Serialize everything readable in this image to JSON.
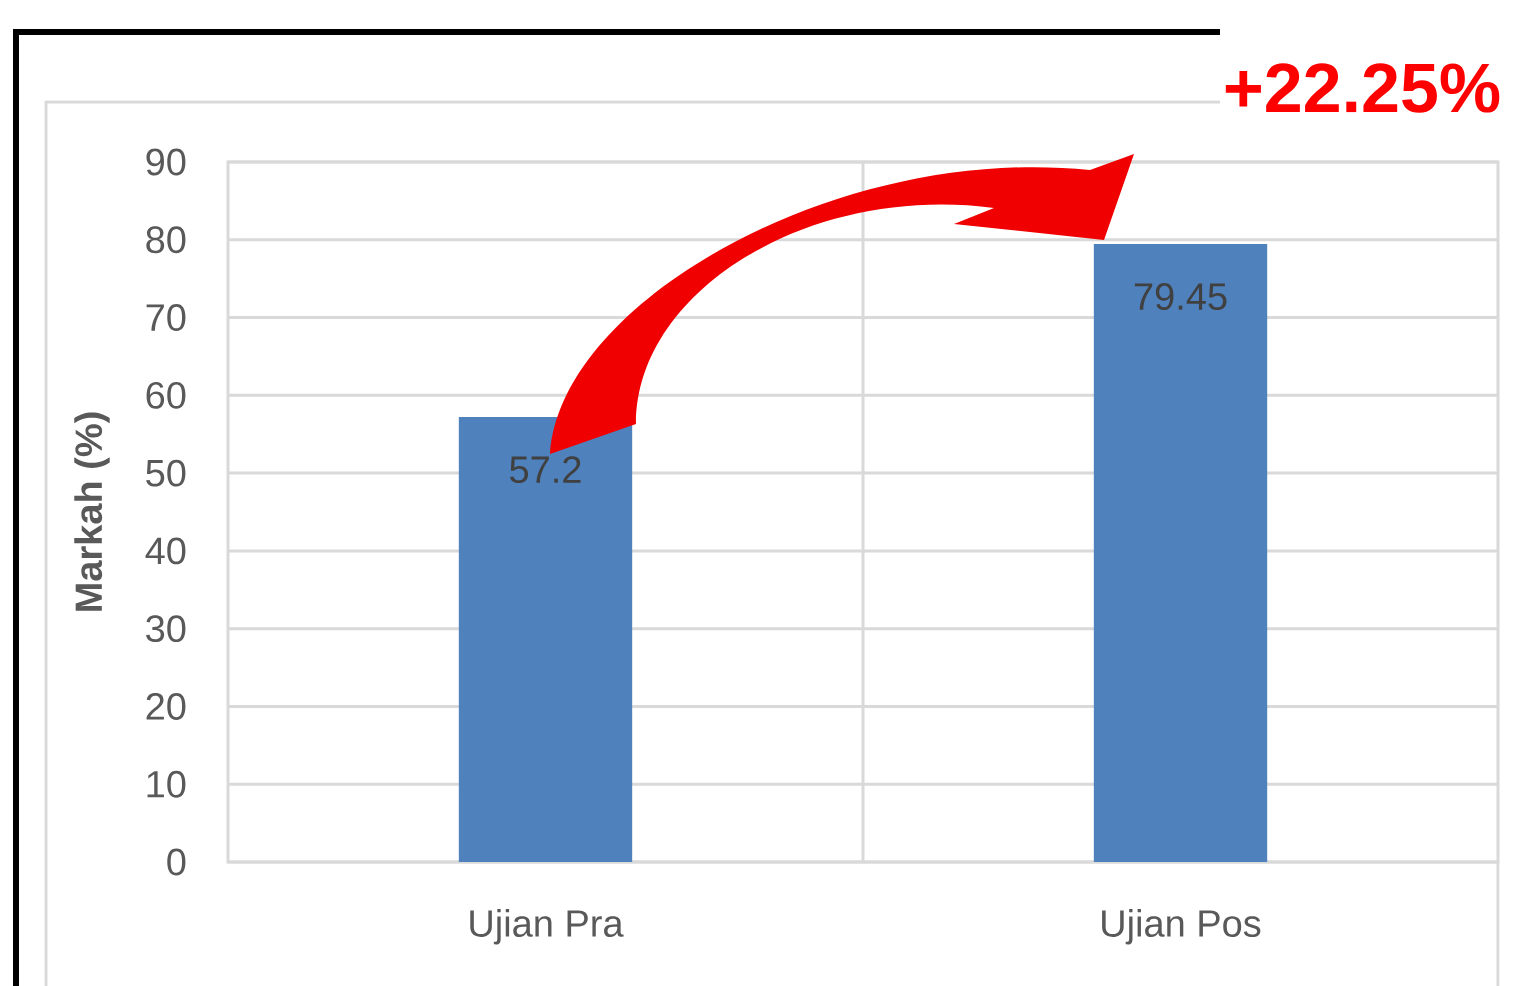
{
  "chart_data": {
    "type": "bar",
    "categories": [
      "Ujian Pra",
      "Ujian Pos"
    ],
    "values": [
      57.2,
      79.45
    ],
    "color": "#4f81bd",
    "ylabel": "Markah (%)",
    "ylim": [
      0,
      90
    ],
    "yticks": [
      0,
      10,
      20,
      30,
      40,
      50,
      60,
      70,
      80,
      90
    ],
    "grid": true,
    "data_labels": true,
    "annotations": [
      "+22.25%"
    ]
  }
}
